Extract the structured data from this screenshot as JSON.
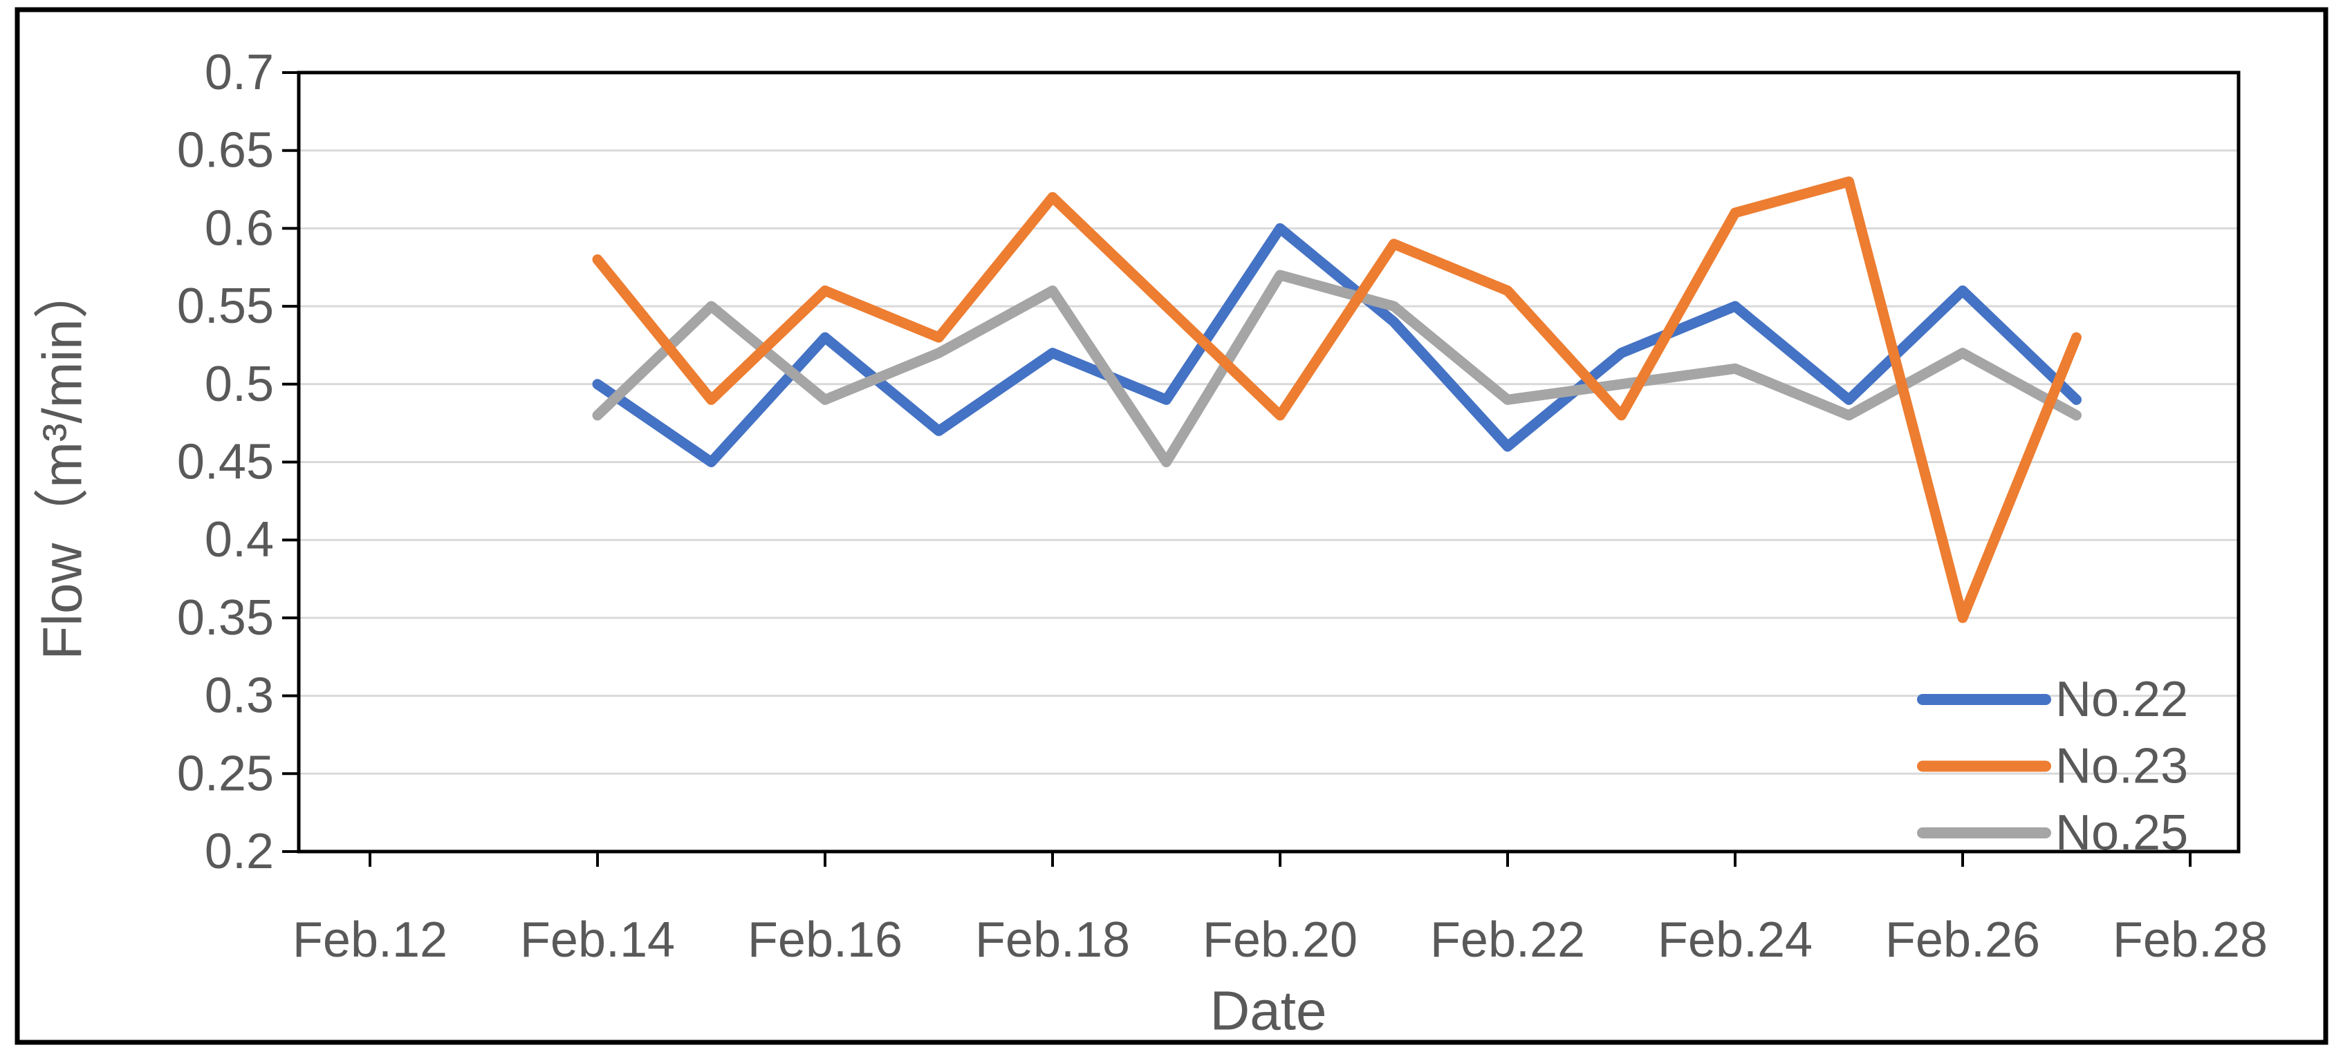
{
  "chart_data": {
    "type": "line",
    "title": "",
    "xlabel": "Date",
    "ylabel": "Flow（m³/min）",
    "x": [
      "Feb.14",
      "Feb.15",
      "Feb.16",
      "Feb.17",
      "Feb.18",
      "Feb.19",
      "Feb.20",
      "Feb.21",
      "Feb.22",
      "Feb.23",
      "Feb.24",
      "Feb.25",
      "Feb.26",
      "Feb.27"
    ],
    "x_tick_labels": [
      "Feb.12",
      "Feb.14",
      "Feb.16",
      "Feb.18",
      "Feb.20",
      "Feb.22",
      "Feb.24",
      "Feb.26",
      "Feb.28"
    ],
    "y_tick_labels": [
      "0.2",
      "0.25",
      "0.3",
      "0.35",
      "0.4",
      "0.45",
      "0.5",
      "0.55",
      "0.6",
      "0.65",
      "0.7"
    ],
    "ylim": [
      0.2,
      0.7
    ],
    "grid": "horizontal",
    "legend_position": "inside-right",
    "series": [
      {
        "name": "No.22",
        "color": "#4472C4",
        "values": [
          0.5,
          0.45,
          0.53,
          0.47,
          0.52,
          0.49,
          0.6,
          0.54,
          0.46,
          0.52,
          0.55,
          0.49,
          0.56,
          0.49
        ]
      },
      {
        "name": "No.23",
        "color": "#ED7D31",
        "values": [
          0.58,
          0.49,
          0.56,
          0.53,
          0.62,
          0.55,
          0.48,
          0.59,
          0.56,
          0.48,
          0.61,
          0.63,
          0.35,
          0.53
        ]
      },
      {
        "name": "No.25",
        "color": "#A5A5A5",
        "values": [
          0.48,
          0.55,
          0.49,
          0.52,
          0.56,
          0.45,
          0.57,
          0.55,
          0.49,
          0.5,
          0.51,
          0.48,
          0.52,
          0.48
        ]
      }
    ],
    "text_color": "#595959",
    "grid_color": "#D9D9D9",
    "axis_color": "#000000",
    "background_color": "#FFFFFF"
  }
}
